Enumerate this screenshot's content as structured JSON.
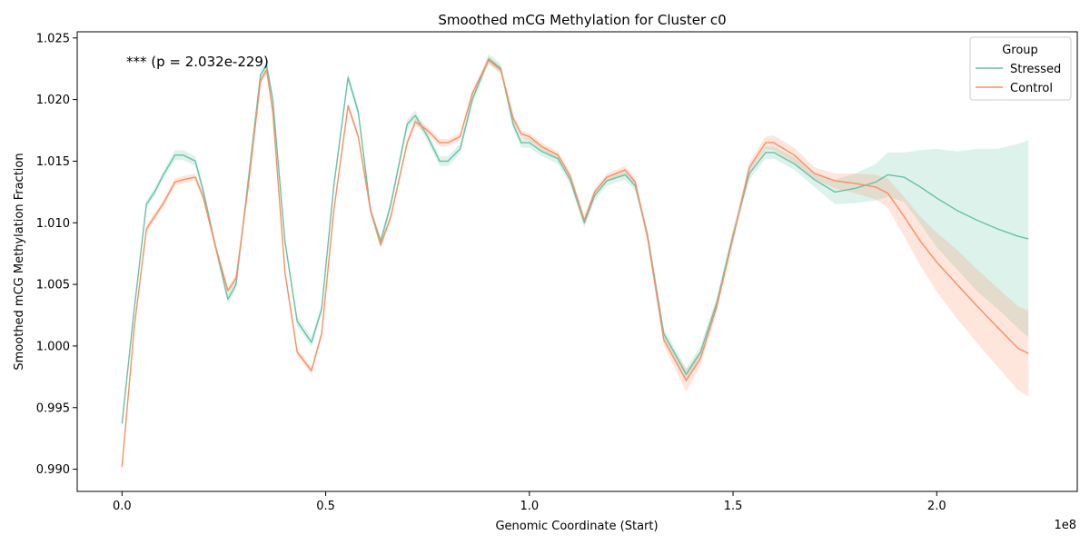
{
  "chart_data": {
    "type": "line",
    "title": "Smoothed mCG Methylation for Cluster c0",
    "xlabel": "Genomic Coordinate (Start)",
    "ylabel": "Smoothed mCG Methylation Fraction",
    "x_offset_label": "1e8",
    "annotation": "*** (p = 2.032e-229)",
    "xlim": [
      -0.11,
      2.345
    ],
    "ylim": [
      0.9882,
      1.0255
    ],
    "xticks": [
      0.0,
      0.5,
      1.0,
      1.5,
      2.0
    ],
    "xtick_labels": [
      "0.0",
      "0.5",
      "1.0",
      "1.5",
      "2.0"
    ],
    "yticks": [
      0.99,
      0.995,
      1.0,
      1.005,
      1.01,
      1.015,
      1.02,
      1.025
    ],
    "ytick_labels": [
      "0.990",
      "0.995",
      "1.000",
      "1.005",
      "1.010",
      "1.015",
      "1.020",
      "1.025"
    ],
    "grid": false,
    "legend": {
      "title": "Group",
      "placement": "top-right"
    },
    "series": [
      {
        "name": "Stressed",
        "color": "#66c2a5",
        "x": [
          0.0,
          0.03,
          0.06,
          0.08,
          0.1,
          0.13,
          0.15,
          0.18,
          0.2,
          0.23,
          0.26,
          0.28,
          0.31,
          0.34,
          0.355,
          0.37,
          0.4,
          0.43,
          0.465,
          0.49,
          0.52,
          0.555,
          0.58,
          0.61,
          0.635,
          0.66,
          0.7,
          0.72,
          0.75,
          0.78,
          0.8,
          0.83,
          0.86,
          0.9,
          0.93,
          0.96,
          0.98,
          1.0,
          1.03,
          1.07,
          1.1,
          1.135,
          1.16,
          1.19,
          1.235,
          1.26,
          1.29,
          1.33,
          1.385,
          1.42,
          1.46,
          1.5,
          1.54,
          1.58,
          1.6,
          1.65,
          1.7,
          1.75,
          1.8,
          1.85,
          1.88,
          1.92,
          1.96,
          2.0,
          2.05,
          2.1,
          2.15,
          2.2,
          2.225
        ],
        "y": [
          0.9937,
          1.003,
          1.0115,
          1.0125,
          1.0138,
          1.0155,
          1.0155,
          1.015,
          1.0125,
          1.008,
          1.0038,
          1.005,
          1.0135,
          1.022,
          1.0228,
          1.02,
          1.0085,
          1.002,
          1.0003,
          1.003,
          1.013,
          1.0218,
          1.019,
          1.011,
          1.0085,
          1.0115,
          1.018,
          1.0187,
          1.017,
          1.015,
          1.015,
          1.016,
          1.02,
          1.0233,
          1.0225,
          1.018,
          1.0165,
          1.0165,
          1.0158,
          1.0152,
          1.0135,
          1.01,
          1.0122,
          1.0134,
          1.0139,
          1.013,
          1.009,
          1.001,
          0.9977,
          0.9995,
          1.0035,
          1.009,
          1.014,
          1.0157,
          1.0157,
          1.0148,
          1.0135,
          1.0125,
          1.0128,
          1.0133,
          1.0139,
          1.0137,
          1.0129,
          1.012,
          1.011,
          1.0102,
          1.0095,
          1.0089,
          1.0087
        ],
        "ci_half": [
          0.0003,
          0.0003,
          0.0003,
          0.0003,
          0.0003,
          0.0004,
          0.0004,
          0.0004,
          0.0004,
          0.0004,
          0.0004,
          0.0004,
          0.0004,
          0.0004,
          0.0004,
          0.0004,
          0.0004,
          0.0004,
          0.0004,
          0.0004,
          0.0004,
          0.0004,
          0.0004,
          0.0004,
          0.0004,
          0.0004,
          0.0004,
          0.0004,
          0.0004,
          0.0004,
          0.0004,
          0.0004,
          0.0004,
          0.0004,
          0.0004,
          0.0004,
          0.0004,
          0.0004,
          0.0004,
          0.0004,
          0.0004,
          0.0004,
          0.0004,
          0.0004,
          0.0004,
          0.0004,
          0.0004,
          0.0004,
          0.0005,
          0.0005,
          0.0005,
          0.0005,
          0.0005,
          0.0005,
          0.0005,
          0.0005,
          0.0006,
          0.001,
          0.0012,
          0.0015,
          0.0018,
          0.002,
          0.003,
          0.004,
          0.0048,
          0.0058,
          0.0065,
          0.0075,
          0.008
        ]
      },
      {
        "name": "Control",
        "color": "#fc8d62",
        "x": [
          0.0,
          0.03,
          0.06,
          0.08,
          0.1,
          0.13,
          0.15,
          0.18,
          0.2,
          0.23,
          0.26,
          0.28,
          0.31,
          0.34,
          0.355,
          0.37,
          0.4,
          0.43,
          0.465,
          0.49,
          0.52,
          0.555,
          0.58,
          0.61,
          0.635,
          0.66,
          0.7,
          0.72,
          0.75,
          0.78,
          0.8,
          0.83,
          0.86,
          0.9,
          0.93,
          0.96,
          0.98,
          1.0,
          1.03,
          1.07,
          1.1,
          1.135,
          1.16,
          1.19,
          1.235,
          1.26,
          1.29,
          1.33,
          1.385,
          1.42,
          1.46,
          1.5,
          1.54,
          1.58,
          1.6,
          1.65,
          1.7,
          1.75,
          1.8,
          1.85,
          1.88,
          1.92,
          1.96,
          2.0,
          2.05,
          2.1,
          2.15,
          2.2,
          2.225
        ],
        "y": [
          0.9902,
          1.0015,
          1.0095,
          1.0105,
          1.0115,
          1.0133,
          1.0135,
          1.0137,
          1.012,
          1.008,
          1.0045,
          1.0055,
          1.013,
          1.0215,
          1.0224,
          1.019,
          1.006,
          0.9995,
          0.998,
          1.001,
          1.011,
          1.0195,
          1.017,
          1.011,
          1.0082,
          1.0105,
          1.0165,
          1.0182,
          1.0175,
          1.0165,
          1.0165,
          1.017,
          1.0205,
          1.0232,
          1.0224,
          1.0185,
          1.0172,
          1.017,
          1.0162,
          1.0155,
          1.0138,
          1.0102,
          1.0125,
          1.0137,
          1.0143,
          1.0133,
          1.0088,
          1.0005,
          0.9972,
          0.999,
          1.0032,
          1.0088,
          1.0145,
          1.0165,
          1.0165,
          1.0155,
          1.014,
          1.0134,
          1.0132,
          1.0129,
          1.0124,
          1.0105,
          1.0085,
          1.0068,
          1.005,
          1.0032,
          1.0015,
          0.9998,
          0.9994
        ],
        "ci_half": [
          0.0003,
          0.0003,
          0.0003,
          0.0003,
          0.0003,
          0.0003,
          0.0003,
          0.0003,
          0.0003,
          0.0003,
          0.0003,
          0.0003,
          0.0003,
          0.0003,
          0.0003,
          0.0003,
          0.0003,
          0.0003,
          0.0003,
          0.0003,
          0.0003,
          0.0003,
          0.0003,
          0.0003,
          0.0003,
          0.0003,
          0.0003,
          0.0003,
          0.0003,
          0.0003,
          0.0003,
          0.0003,
          0.0003,
          0.0003,
          0.0003,
          0.0003,
          0.0003,
          0.0003,
          0.0003,
          0.0003,
          0.0003,
          0.0003,
          0.0003,
          0.0003,
          0.0003,
          0.0003,
          0.0004,
          0.0005,
          0.0009,
          0.0006,
          0.0004,
          0.0004,
          0.0004,
          0.0005,
          0.0006,
          0.0006,
          0.0005,
          0.0006,
          0.0008,
          0.001,
          0.0012,
          0.0016,
          0.002,
          0.0024,
          0.0028,
          0.003,
          0.0032,
          0.0034,
          0.0035
        ]
      }
    ]
  }
}
